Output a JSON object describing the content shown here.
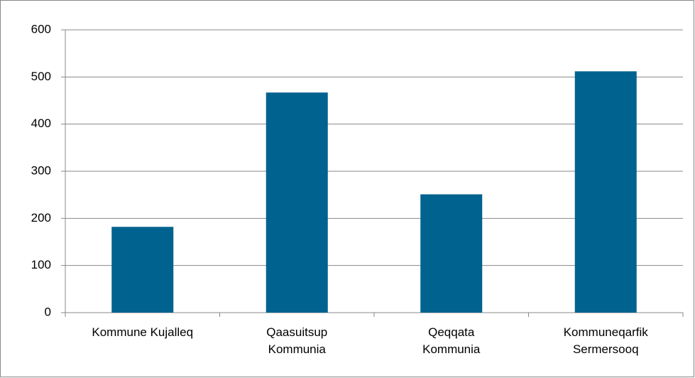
{
  "chart_data": {
    "type": "bar",
    "categories": [
      "Kommune Kujalleq",
      "Qaasuitsup Kommunia",
      "Qeqqata Kommunia",
      "Kommuneqarfik Sermersooq"
    ],
    "values": [
      182,
      467,
      251,
      512
    ],
    "color": "#00628f",
    "ylim": [
      0,
      600
    ],
    "yticks": [
      0,
      100,
      200,
      300,
      400,
      500,
      600
    ],
    "grid": true
  }
}
